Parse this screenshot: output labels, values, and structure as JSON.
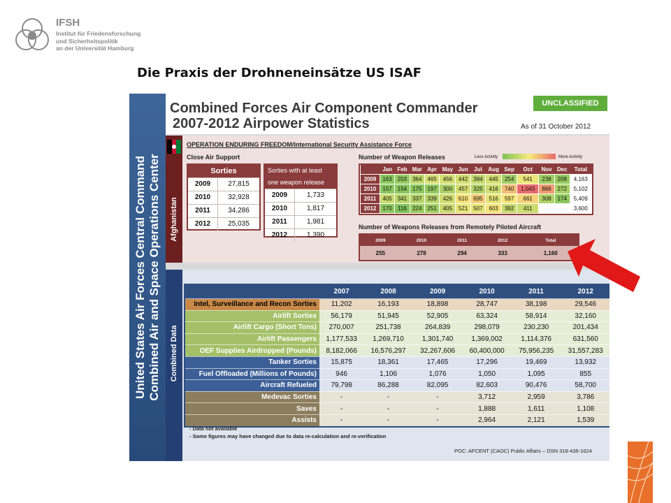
{
  "header": {
    "org_name": "IFSH",
    "org_sub_1": "Institut für Friedensforschung",
    "org_sub_2": "und Sicherheitspolitik",
    "org_sub_3": "an der Universität Hamburg",
    "logo_icon": "ifsh-logo-icon"
  },
  "slide_title": "Die Praxis der Drohneneinsätze US ISAF",
  "panel": {
    "sidebar_line1": "United States Air Forces Central Command",
    "sidebar_line2": "Combined Air and Space Operations Center",
    "title_line1": "Combined Forces Air Component Commander",
    "title_line2": "2007-2012 Airpower Statistics",
    "classification": "UNCLASSIFIED",
    "as_of": "As of 31 October 2012",
    "afghanistan_label": "Afghanistan",
    "operation_title": "OPERATION ENDURING FREEDOM/International Security Assistance Force",
    "cas_title": "Close Air Support",
    "sorties": {
      "header": "Sorties",
      "rows": [
        {
          "year": "2009",
          "value": "27,815"
        },
        {
          "year": "2010",
          "value": "32,928"
        },
        {
          "year": "2011",
          "value": "34,286"
        },
        {
          "year": "2012",
          "value": "25,035"
        }
      ]
    },
    "sorties_weapon": {
      "header_1": "Sorties with at least",
      "header_2": "one weapon release",
      "rows": [
        {
          "year": "2009",
          "value": "1,733"
        },
        {
          "year": "2010",
          "value": "1,817"
        },
        {
          "year": "2011",
          "value": "1,981"
        },
        {
          "year": "2012",
          "value": "1,390"
        }
      ]
    },
    "weapon_releases": {
      "title": "Number of Weapon Releases",
      "legend_less": "Less Activity",
      "legend_more": "More Activity",
      "months": [
        "Jan",
        "Feb",
        "Mar",
        "Apr",
        "May",
        "Jun",
        "Jul",
        "Aug",
        "Sep",
        "Oct",
        "Nov",
        "Dec",
        "Total"
      ],
      "rows": [
        {
          "year": "2009",
          "values": [
            "163",
            "203",
            "364",
            "465",
            "456",
            "442",
            "384",
            "445",
            "254",
            "541",
            "238",
            "208",
            "4,163"
          ]
        },
        {
          "year": "2010",
          "values": [
            "157",
            "154",
            "175",
            "197",
            "300",
            "457",
            "325",
            "416",
            "740",
            "1,043",
            "866",
            "272",
            "5,102"
          ]
        },
        {
          "year": "2011",
          "values": [
            "405",
            "341",
            "337",
            "339",
            "426",
            "610",
            "695",
            "516",
            "597",
            "661",
            "308",
            "174",
            "5,409"
          ]
        },
        {
          "year": "2012",
          "values": [
            "170",
            "116",
            "224",
            "251",
            "405",
            "521",
            "507",
            "603",
            "392",
            "411",
            "",
            "",
            "3,600"
          ]
        }
      ]
    },
    "rpa": {
      "title": "Number of Weapons Releases from Remotely Piloted Aircraft",
      "headers": [
        "2009",
        "2010",
        "2011",
        "2012",
        "Total"
      ],
      "values": [
        "255",
        "278",
        "294",
        "333",
        "1,160"
      ]
    },
    "combined_label": "Combined Data",
    "combined": {
      "years": [
        "2007",
        "2008",
        "2009",
        "2010",
        "2011",
        "2012"
      ],
      "groups": [
        {
          "key": "isr",
          "rows": [
            {
              "label": "Intel, Surveillance and Recon Sorties",
              "values": [
                "11,202",
                "16,193",
                "18,898",
                "28,747",
                "38,198",
                "29,546"
              ]
            }
          ]
        },
        {
          "key": "air",
          "rows": [
            {
              "label": "Airlift Sorties",
              "values": [
                "56,179",
                "51,945",
                "52,905",
                "63,324",
                "58,914",
                "32,160"
              ]
            },
            {
              "label": "Airlift Cargo (Short Tons)",
              "values": [
                "270,007",
                "251,738",
                "264,839",
                "298,079",
                "230,230",
                "201,434"
              ]
            },
            {
              "label": "Airlift Passengers",
              "values": [
                "1,177,533",
                "1,269,710",
                "1,301,740",
                "1,369,002",
                "1,114,376",
                "631,560"
              ]
            },
            {
              "label": "OEF Supplies Airdropped (Pounds)",
              "values": [
                "8,182,066",
                "16,576,297",
                "32,267,606",
                "60,400,000",
                "75,956,235",
                "31,557,283"
              ]
            }
          ]
        },
        {
          "key": "tank",
          "rows": [
            {
              "label": "Tanker Sorties",
              "values": [
                "15,875",
                "18,361",
                "17,465",
                "17,296",
                "19,469",
                "13,932"
              ]
            },
            {
              "label": "Fuel Offloaded (Millions of Pounds)",
              "values": [
                "946",
                "1,106",
                "1,076",
                "1,050",
                "1,095",
                "855"
              ]
            },
            {
              "label": "Aircraft Refueled",
              "values": [
                "79,798",
                "86,288",
                "82,095",
                "82,603",
                "90,476",
                "58,700"
              ]
            }
          ]
        },
        {
          "key": "med",
          "rows": [
            {
              "label": "Medevac Sorties",
              "values": [
                "-",
                "-",
                "-",
                "3,712",
                "2,959",
                "3,786"
              ]
            },
            {
              "label": "Saves",
              "values": [
                "-",
                "-",
                "-",
                "1,888",
                "1,611",
                "1,108"
              ]
            },
            {
              "label": "Assists",
              "values": [
                "-",
                "-",
                "-",
                "2,964",
                "2,121",
                "1,539"
              ]
            }
          ]
        }
      ]
    },
    "note_1": "- Data not available",
    "note_2": "- Some figures may have changed due to data re-calculation and re-verification",
    "poc": "POC: AFCENT (CAOC) Public Affairs – DSN 318-436-1624"
  },
  "colors": {
    "accent_red": "#e01818",
    "maroon": "#8a3b3b",
    "navy": "#2f4f80",
    "unclassified_green": "#5fae3c"
  }
}
